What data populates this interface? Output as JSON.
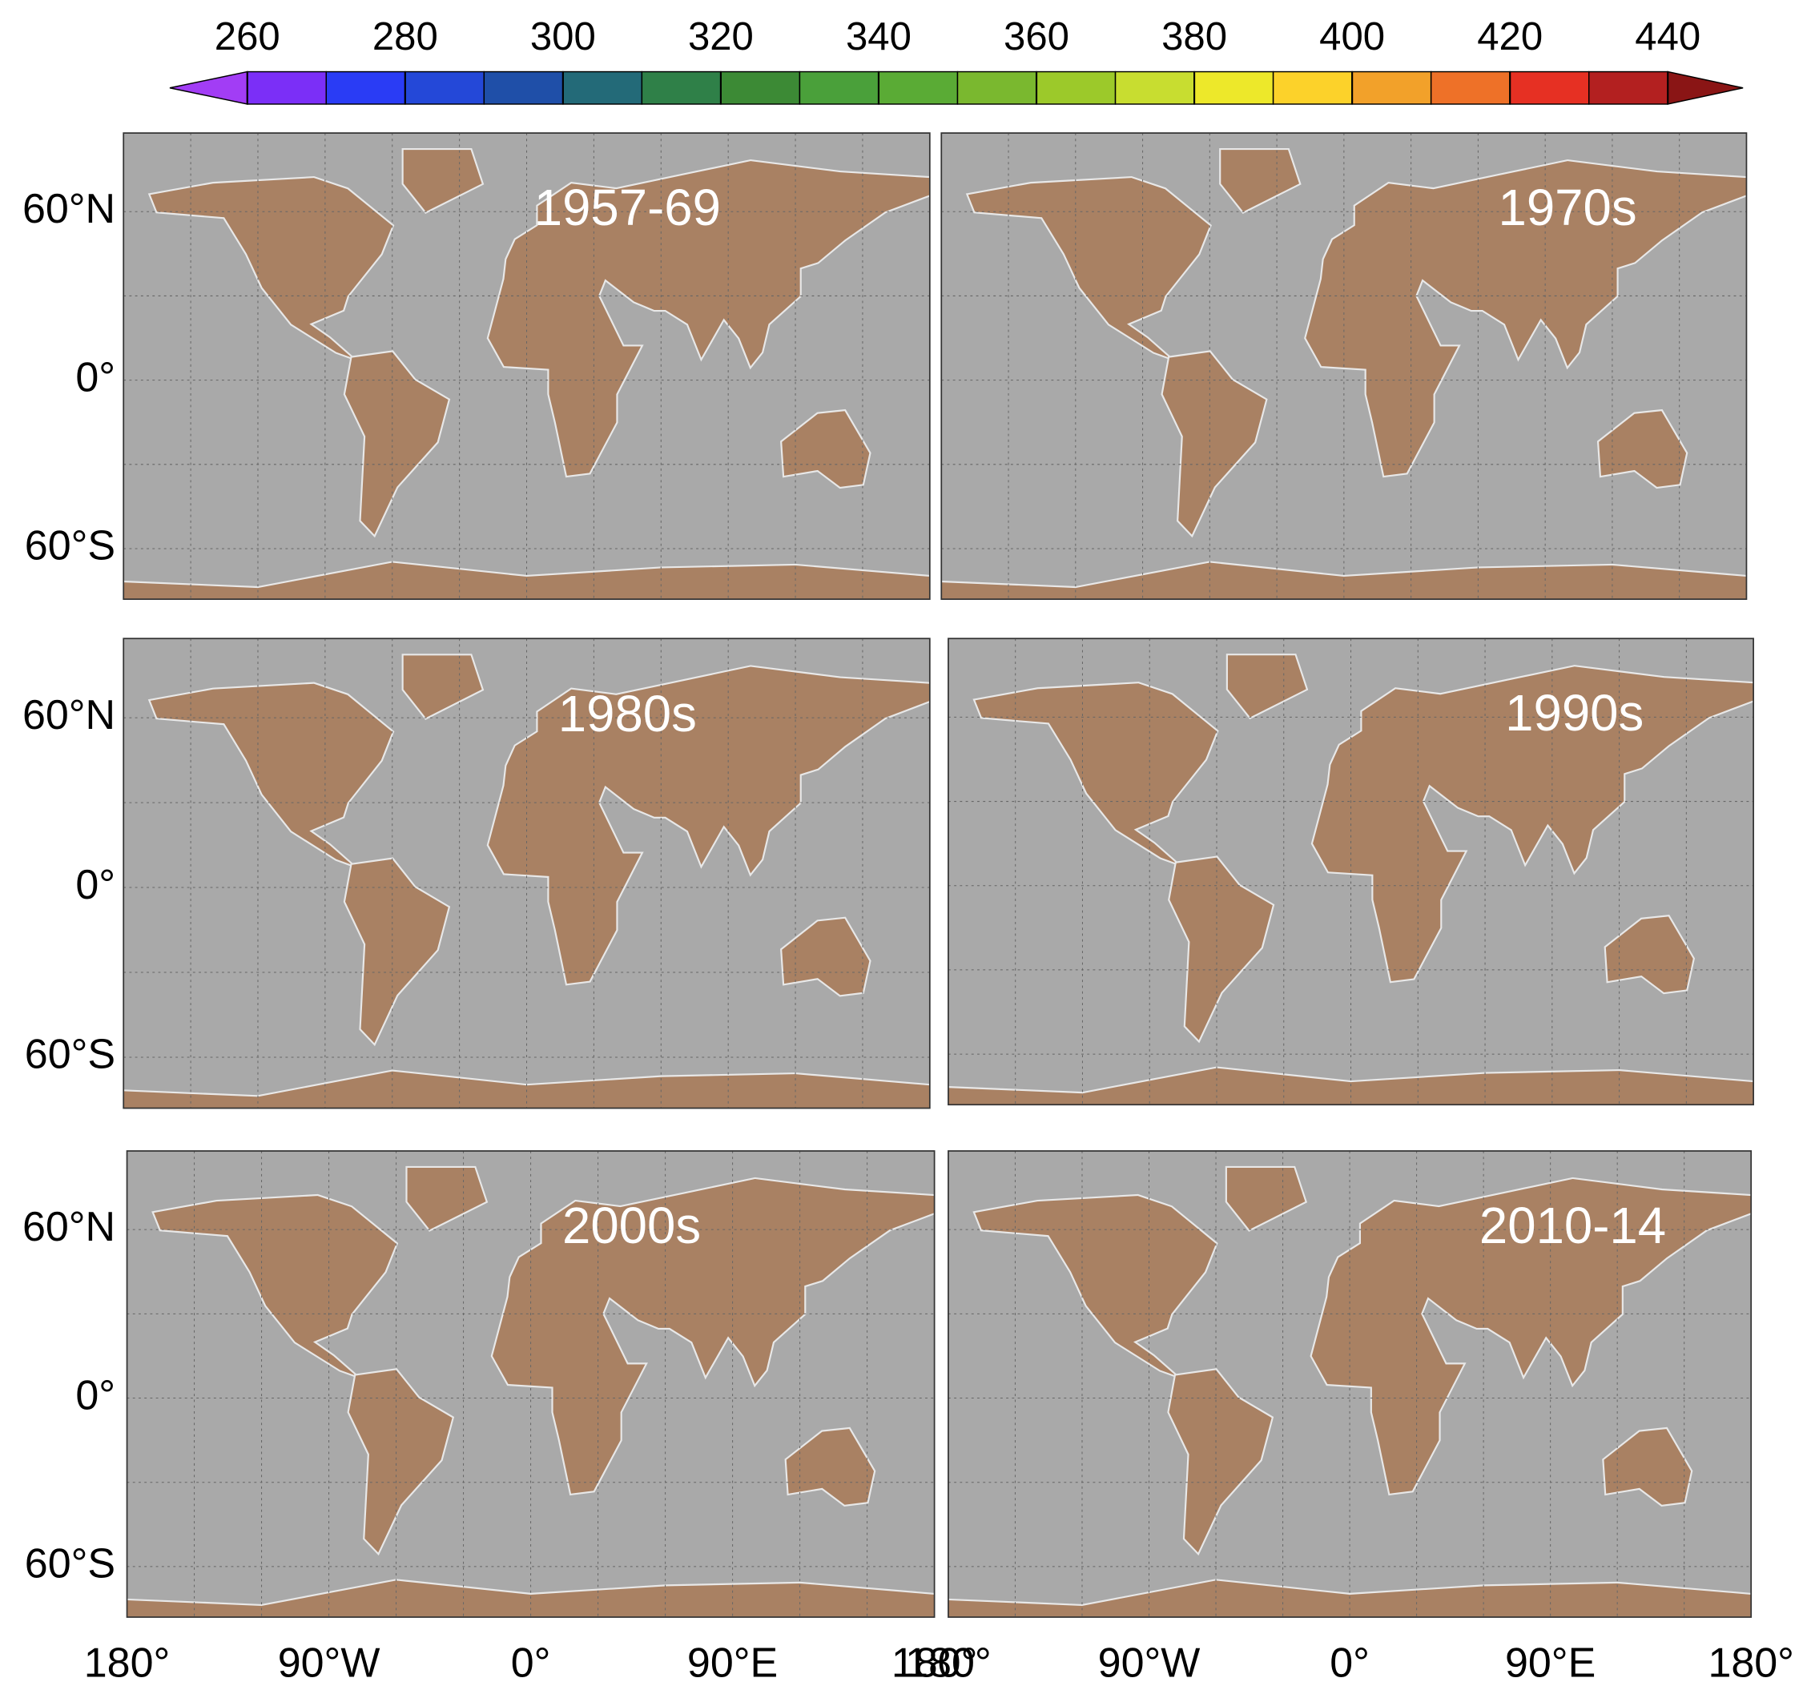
{
  "colorbar": {
    "ticks": [
      260,
      280,
      300,
      320,
      340,
      360,
      380,
      400,
      420,
      440
    ],
    "colors": [
      "#7b2ff7",
      "#2a3cf5",
      "#2448d8",
      "#1f4fa8",
      "#236a78",
      "#2f8048",
      "#3c8a35",
      "#4aa03a",
      "#5aab35",
      "#7ab82f",
      "#9cc92a",
      "#c8dd30",
      "#ede82a",
      "#fcd22a",
      "#f2a12a",
      "#ee7128",
      "#e63023",
      "#b32020"
    ],
    "extend_colors": [
      "#a23df5",
      "#8a1515"
    ]
  },
  "lat_labels": [
    "60°N",
    "0°",
    "60°S"
  ],
  "lon_labels": [
    "180°",
    "90°W",
    "0°",
    "90°E",
    "180°"
  ],
  "panels": [
    {
      "label": "1957-69"
    },
    {
      "label": "1970s"
    },
    {
      "label": "1980s"
    },
    {
      "label": "1990s"
    },
    {
      "label": "2000s"
    },
    {
      "label": "2010-14"
    }
  ]
}
